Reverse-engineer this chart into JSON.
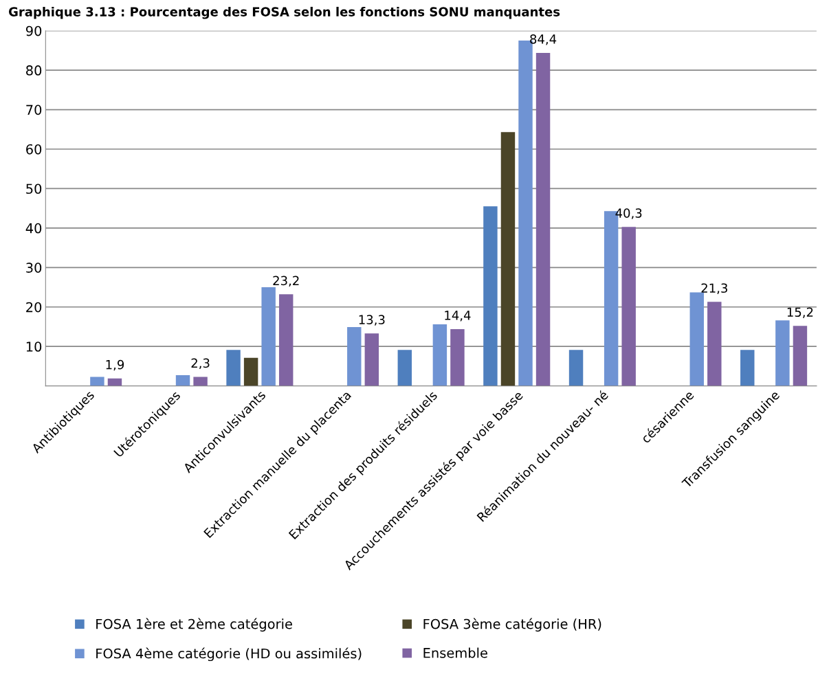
{
  "chart_data": {
    "type": "bar",
    "title": "Graphique 3.13 : Pourcentage des FOSA selon les fonctions SONU manquantes",
    "categories": [
      "Antibiotiques",
      "Utérotoniques",
      "Anticonvulsivants",
      "Extraction manuelle du placenta",
      "Extraction des produits résiduels",
      "Accouchements assistés par voie basse",
      "Réanimation du nouveau- né",
      "césarienne",
      "Transfusion sanguine"
    ],
    "series": [
      {
        "name": "FOSA 1ère et 2ème catégorie",
        "color": "#4f7fbe",
        "values": [
          null,
          null,
          9.1,
          null,
          9.1,
          45.5,
          9.1,
          null,
          9.1
        ]
      },
      {
        "name": "FOSA 3ème catégorie (HR)",
        "color": "#4b4528",
        "values": [
          null,
          null,
          7.1,
          null,
          null,
          64.3,
          null,
          null,
          null
        ]
      },
      {
        "name": "FOSA 4ème catégorie (HD ou assimilés)",
        "color": "#6f93d3",
        "values": [
          2.3,
          2.7,
          25.0,
          14.9,
          15.6,
          87.5,
          44.3,
          23.7,
          16.6
        ]
      },
      {
        "name": "Ensemble",
        "color": "#8064a2",
        "values": [
          1.9,
          2.3,
          23.2,
          13.3,
          14.4,
          84.4,
          40.3,
          21.3,
          15.2
        ],
        "value_labels": [
          "1,9",
          "2,3",
          "23,2",
          "13,3",
          "14,4",
          "84,4",
          "40,3",
          "21,3",
          "15,2"
        ]
      }
    ],
    "ylim": [
      0,
      90
    ],
    "yticks": [
      10,
      20,
      30,
      40,
      50,
      60,
      70,
      80,
      90
    ],
    "grid": "y",
    "legend": "bottom"
  }
}
